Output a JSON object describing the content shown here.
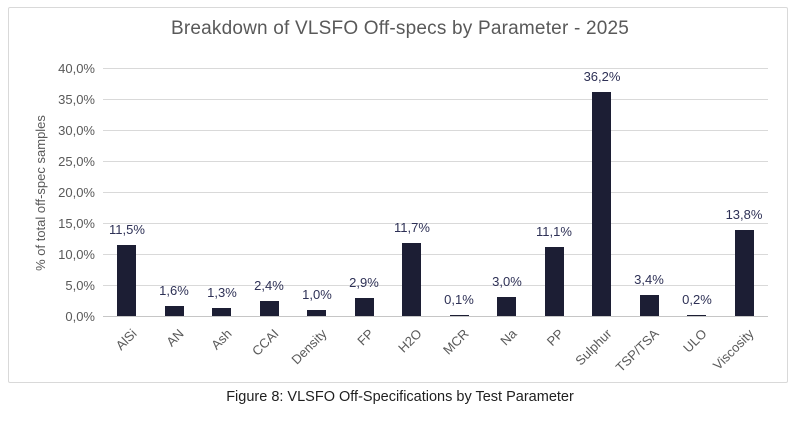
{
  "chart_data": {
    "type": "bar",
    "title": "Breakdown of VLSFO Off-specs by Parameter - 2025",
    "categories": [
      "AlSi",
      "AN",
      "Ash",
      "CCAI",
      "Density",
      "FP",
      "H2O",
      "MCR",
      "Na",
      "PP",
      "Sulphur",
      "TSP/TSA",
      "ULO",
      "Viscosity"
    ],
    "values": [
      11.5,
      1.6,
      1.3,
      2.4,
      1.0,
      2.9,
      11.7,
      0.1,
      3.0,
      11.1,
      36.2,
      3.4,
      0.2,
      13.8
    ],
    "data_labels": [
      "11,5%",
      "1,6%",
      "1,3%",
      "2,4%",
      "1,0%",
      "2,9%",
      "11,7%",
      "0,1%",
      "3,0%",
      "11,1%",
      "36,2%",
      "3,4%",
      "0,2%",
      "13,8%"
    ],
    "xlabel": "",
    "ylabel": "% of total off-spec samples",
    "ylim": [
      0,
      40
    ],
    "ytick_step": 5,
    "ytick_labels": [
      "0,0%",
      "5,0%",
      "10,0%",
      "15,0%",
      "20,0%",
      "25,0%",
      "30,0%",
      "35,0%",
      "40,0%"
    ],
    "grid": true,
    "legend_position": "none",
    "colors": {
      "bar": "#1C1E34",
      "value_label": "#2E3156",
      "axis_text": "#595959",
      "gridline": "#D9D9D9",
      "frame_border": "#D9D9D9",
      "background": "#FFFFFF"
    }
  },
  "caption": "Figure 8: VLSFO Off-Specifications by Test Parameter"
}
